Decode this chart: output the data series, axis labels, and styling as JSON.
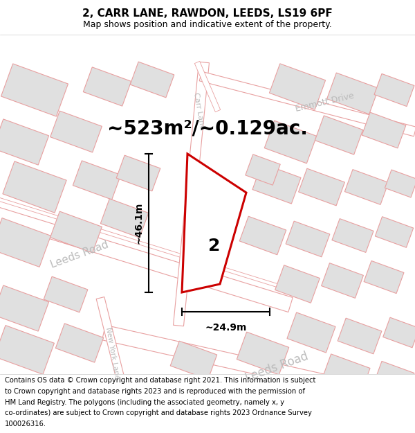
{
  "title": "2, CARR LANE, RAWDON, LEEDS, LS19 6PF",
  "subtitle": "Map shows position and indicative extent of the property.",
  "area_text": "~523m²/~0.129ac.",
  "property_label": "2",
  "dim_vertical": "~46.1m",
  "dim_horizontal": "~24.9m",
  "footer": "Contains OS data © Crown copyright and database right 2021. This information is subject to Crown copyright and database rights 2023 and is reproduced with the permission of HM Land Registry. The polygons (including the associated geometry, namely x, y co-ordinates) are subject to Crown copyright and database rights 2023 Ordnance Survey 100026316.",
  "map_bg": "#f7f7f7",
  "road_fill": "#ffffff",
  "road_outline": "#e8a0a0",
  "building_fill": "#e0e0e0",
  "building_outline": "#e8a0a0",
  "property_edge": "#cc0000",
  "property_fill": "#ffffff",
  "title_fontsize": 11,
  "subtitle_fontsize": 9,
  "area_fontsize": 20,
  "footer_fontsize": 7.2,
  "road_label_color": "#bbbbbb",
  "dim_label_fontsize": 10
}
